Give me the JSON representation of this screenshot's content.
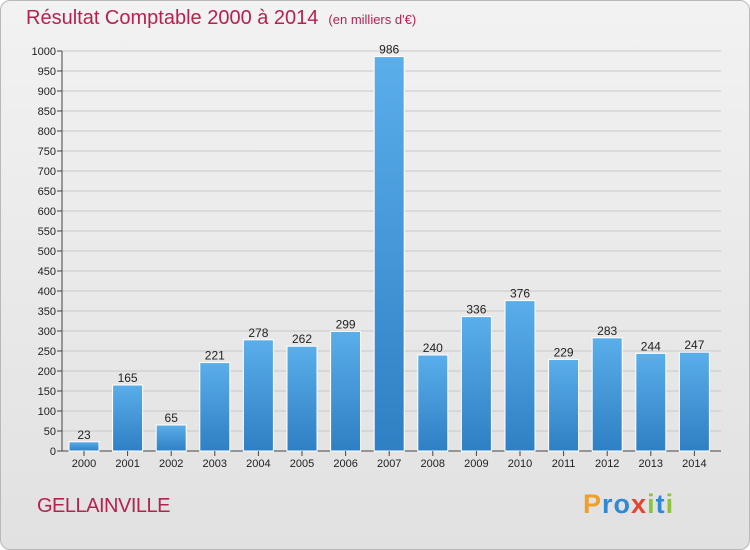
{
  "chart_data": {
    "type": "bar",
    "title": "Résultat Comptable 2000 à 2014",
    "subtitle": "(en milliers d'€)",
    "categories": [
      "2000",
      "2001",
      "2002",
      "2003",
      "2004",
      "2005",
      "2006",
      "2007",
      "2008",
      "2009",
      "2010",
      "2011",
      "2012",
      "2013",
      "2014"
    ],
    "values": [
      23,
      165,
      65,
      221,
      278,
      262,
      299,
      986,
      240,
      336,
      376,
      229,
      283,
      244,
      247
    ],
    "ylim": [
      0,
      1000
    ],
    "yticks": [
      0,
      50,
      100,
      150,
      200,
      250,
      300,
      350,
      400,
      450,
      500,
      550,
      600,
      650,
      700,
      750,
      800,
      850,
      900,
      950,
      1000
    ],
    "grid": true,
    "bar_color": "#3d95dc"
  },
  "footer": {
    "commune": "GELLAINVILLE"
  },
  "logo": {
    "letters": [
      {
        "ch": "P",
        "color": "#f0a02a"
      },
      {
        "ch": "r",
        "color": "#2f8ad6"
      },
      {
        "ch": "o",
        "color": "#2f8ad6"
      },
      {
        "ch": "x",
        "color": "#e2442f"
      },
      {
        "ch": "i",
        "color": "#8cc43e"
      },
      {
        "ch": "t",
        "color": "#2f8ad6"
      },
      {
        "ch": "i",
        "color": "#8cc43e"
      }
    ]
  }
}
